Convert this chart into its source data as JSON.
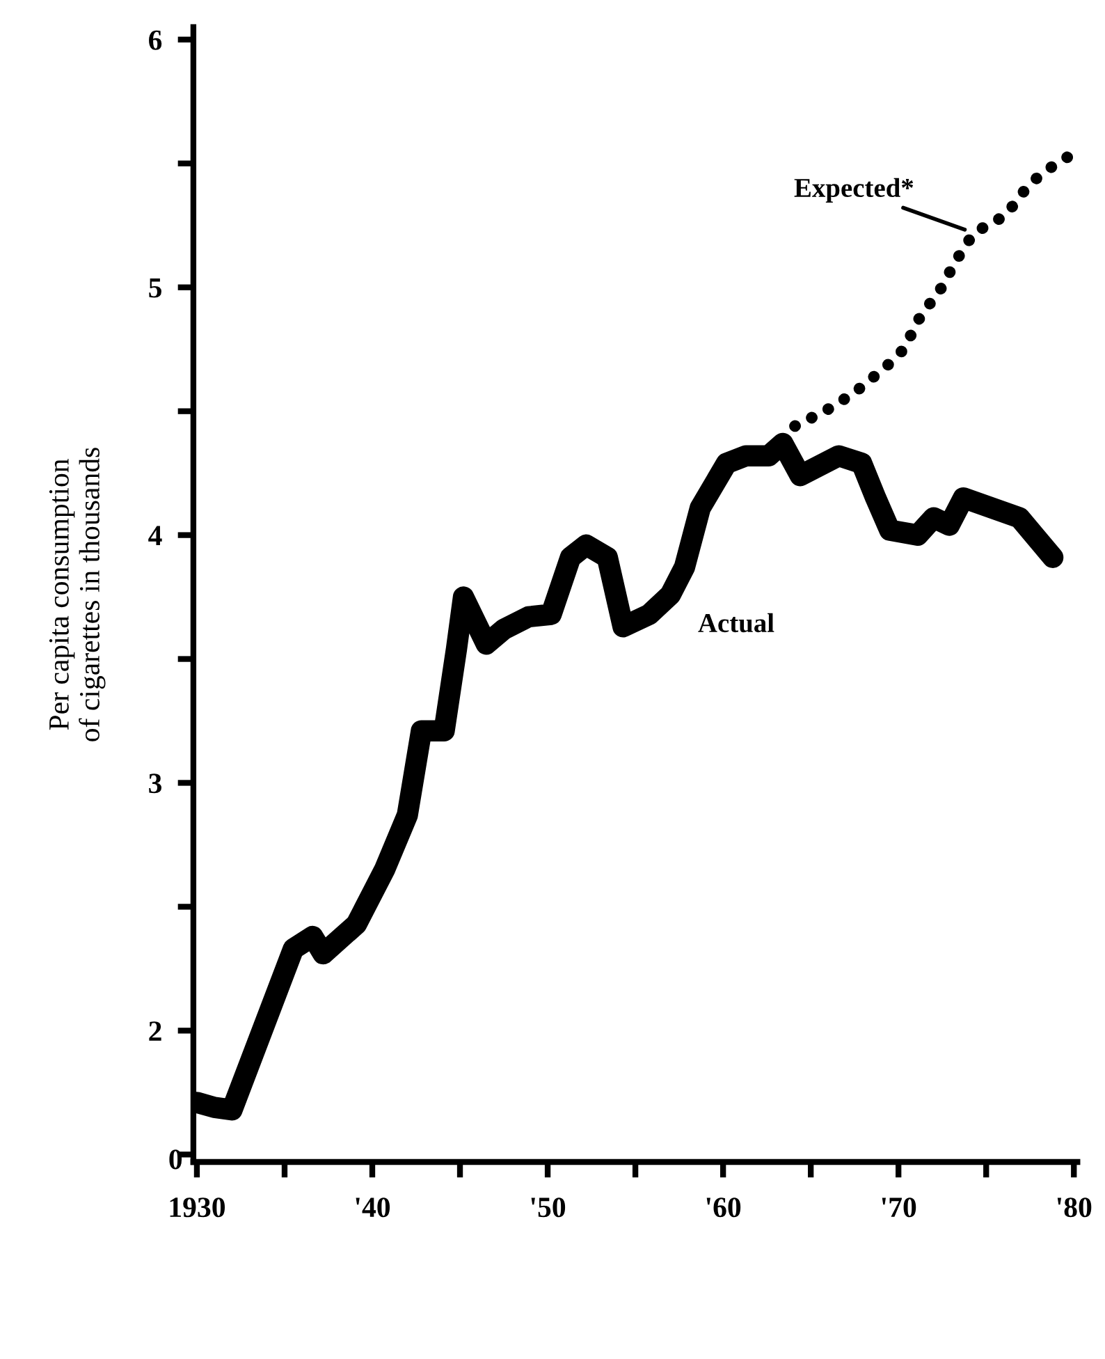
{
  "chart_data": {
    "type": "line",
    "ylabel": "Per capita consumption\nof cigarettes in thousands",
    "xlim": [
      1929.8,
      1980.2
    ],
    "ylim": [
      1.47,
      6.05
    ],
    "xticks": [
      {
        "value": 1930,
        "label": "1930"
      },
      {
        "value": 1935,
        "label": null
      },
      {
        "value": 1940,
        "label": "'40"
      },
      {
        "value": 1945,
        "label": null
      },
      {
        "value": 1950,
        "label": "'50"
      },
      {
        "value": 1955,
        "label": null
      },
      {
        "value": 1960,
        "label": "'60"
      },
      {
        "value": 1965,
        "label": null
      },
      {
        "value": 1970,
        "label": "'70"
      },
      {
        "value": 1975,
        "label": null
      },
      {
        "value": 1980,
        "label": "'80"
      }
    ],
    "yticks": [
      {
        "value": 1.5,
        "label": null
      },
      2,
      {
        "value": 2.5,
        "label": null
      },
      3,
      {
        "value": 3.5,
        "label": null
      },
      4,
      {
        "value": 4.5,
        "label": null
      },
      5,
      {
        "value": 5.5,
        "label": null
      },
      6
    ],
    "annotations": [
      "0"
    ],
    "grid": false,
    "legend": false,
    "series": [
      {
        "name": "Actual",
        "color": "#000000",
        "line_style": "solid",
        "x": [
          1930,
          1931,
          1932,
          1935.5,
          1936.6,
          1937.2,
          1939.1,
          1940.7,
          1942,
          1942.8,
          1944.1,
          1944.8,
          1945.2,
          1946.5,
          1947.5,
          1948.9,
          1950.2,
          1951.3,
          1952.2,
          1953.4,
          1954.3,
          1955.8,
          1957,
          1957.8,
          1958.7,
          1960.2,
          1961.3,
          1962.6,
          1963.4,
          1964.4,
          1966.6,
          1967.9,
          1968.7,
          1969.5,
          1971.1,
          1972,
          1972.9,
          1973.7,
          1976.9,
          1978.8
        ],
        "values": [
          1.71,
          1.69,
          1.68,
          2.33,
          2.38,
          2.31,
          2.43,
          2.65,
          2.87,
          3.21,
          3.21,
          3.54,
          3.75,
          3.56,
          3.62,
          3.67,
          3.68,
          3.91,
          3.96,
          3.91,
          3.63,
          3.68,
          3.76,
          3.87,
          4.11,
          4.29,
          4.32,
          4.32,
          4.37,
          4.24,
          4.32,
          4.29,
          4.15,
          4.02,
          4.0,
          4.07,
          4.04,
          4.15,
          4.07,
          3.91
        ]
      },
      {
        "name": "Expected*",
        "color": "#000000",
        "line_style": "dotted",
        "x": [
          1964.1,
          1965.8,
          1967.4,
          1969.3,
          1970.3,
          1971.3,
          1972.3,
          1973.3,
          1974.3,
          1976.1,
          1977.5,
          1979,
          1980
        ],
        "values": [
          4.44,
          4.5,
          4.57,
          4.68,
          4.75,
          4.89,
          4.98,
          5.11,
          5.22,
          5.29,
          5.42,
          5.5,
          5.54
        ]
      }
    ]
  }
}
